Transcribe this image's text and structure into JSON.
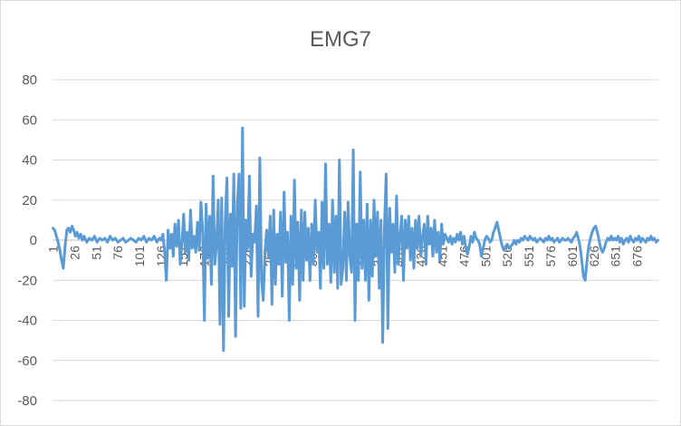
{
  "chart_data": {
    "type": "line",
    "title": "EMG7",
    "xlabel": "",
    "ylabel": "",
    "ylim": [
      -80,
      80
    ],
    "yticks": [
      80,
      60,
      40,
      20,
      0,
      -20,
      -40,
      -60,
      -80
    ],
    "x_count": 700,
    "xtick_labels": [
      "1",
      "26",
      "51",
      "76",
      "101",
      "126",
      "151",
      "176",
      "201",
      "226",
      "251",
      "276",
      "301",
      "326",
      "351",
      "376",
      "401",
      "426",
      "451",
      "476",
      "501",
      "526",
      "551",
      "576",
      "601",
      "626",
      "651",
      "676"
    ],
    "grid": true,
    "legend": "none",
    "series_color": "#5b9bd5",
    "series": [
      {
        "points": [
          [
            1,
            6
          ],
          [
            3,
            5
          ],
          [
            5,
            2
          ],
          [
            7,
            -1
          ],
          [
            9,
            -5
          ],
          [
            11,
            -10
          ],
          [
            13,
            -14
          ],
          [
            15,
            -3
          ],
          [
            17,
            5
          ],
          [
            19,
            6
          ],
          [
            21,
            4
          ],
          [
            23,
            7
          ],
          [
            25,
            5
          ],
          [
            27,
            2
          ],
          [
            29,
            4
          ],
          [
            31,
            1
          ],
          [
            33,
            3
          ],
          [
            35,
            0
          ],
          [
            37,
            2
          ],
          [
            40,
            -1
          ],
          [
            43,
            1
          ],
          [
            46,
            0
          ],
          [
            49,
            2
          ],
          [
            52,
            -1
          ],
          [
            55,
            1
          ],
          [
            58,
            0
          ],
          [
            61,
            1
          ],
          [
            64,
            -1
          ],
          [
            67,
            2
          ],
          [
            70,
            0
          ],
          [
            73,
            1
          ],
          [
            76,
            -1
          ],
          [
            79,
            0
          ],
          [
            82,
            1
          ],
          [
            85,
            -1
          ],
          [
            88,
            0
          ],
          [
            91,
            1
          ],
          [
            94,
            0
          ],
          [
            97,
            -1
          ],
          [
            100,
            1
          ],
          [
            103,
            0
          ],
          [
            106,
            2
          ],
          [
            109,
            -1
          ],
          [
            112,
            1
          ],
          [
            115,
            0
          ],
          [
            118,
            2
          ],
          [
            121,
            -1
          ],
          [
            124,
            1
          ],
          [
            126,
            0
          ],
          [
            128,
            3
          ],
          [
            130,
            -6
          ],
          [
            132,
            -20
          ],
          [
            134,
            5
          ],
          [
            136,
            -4
          ],
          [
            138,
            3
          ],
          [
            140,
            -8
          ],
          [
            142,
            8
          ],
          [
            144,
            -3
          ],
          [
            146,
            10
          ],
          [
            148,
            -12
          ],
          [
            150,
            -2
          ],
          [
            152,
            13
          ],
          [
            154,
            -6
          ],
          [
            156,
            4
          ],
          [
            158,
            -10
          ],
          [
            160,
            15
          ],
          [
            162,
            -4
          ],
          [
            164,
            2
          ],
          [
            166,
            -6
          ],
          [
            168,
            9
          ],
          [
            170,
            -5
          ],
          [
            172,
            19
          ],
          [
            174,
            5
          ],
          [
            176,
            -40
          ],
          [
            178,
            18
          ],
          [
            180,
            -9
          ],
          [
            182,
            12
          ],
          [
            184,
            -22
          ],
          [
            186,
            32
          ],
          [
            188,
            -12
          ],
          [
            190,
            -2
          ],
          [
            192,
            20
          ],
          [
            194,
            -42
          ],
          [
            196,
            21
          ],
          [
            198,
            -55
          ],
          [
            200,
            9
          ],
          [
            202,
            31
          ],
          [
            204,
            -38
          ],
          [
            206,
            13
          ],
          [
            208,
            -13
          ],
          [
            210,
            33
          ],
          [
            212,
            -48
          ],
          [
            214,
            18
          ],
          [
            216,
            33
          ],
          [
            218,
            -34
          ],
          [
            220,
            56
          ],
          [
            222,
            -33
          ],
          [
            224,
            10
          ],
          [
            226,
            -4
          ],
          [
            228,
            32
          ],
          [
            230,
            -18
          ],
          [
            232,
            3
          ],
          [
            234,
            -1
          ],
          [
            236,
            17
          ],
          [
            238,
            -38
          ],
          [
            240,
            41
          ],
          [
            242,
            -20
          ],
          [
            244,
            -30
          ],
          [
            246,
            -6
          ],
          [
            248,
            5
          ],
          [
            250,
            -8
          ],
          [
            252,
            12
          ],
          [
            254,
            -32
          ],
          [
            256,
            15
          ],
          [
            258,
            -22
          ],
          [
            260,
            3
          ],
          [
            262,
            -12
          ],
          [
            264,
            14
          ],
          [
            266,
            -28
          ],
          [
            268,
            24
          ],
          [
            270,
            -11
          ],
          [
            272,
            4
          ],
          [
            274,
            -40
          ],
          [
            276,
            12
          ],
          [
            278,
            -22
          ],
          [
            280,
            30
          ],
          [
            282,
            -14
          ],
          [
            284,
            9
          ],
          [
            286,
            -30
          ],
          [
            288,
            15
          ],
          [
            290,
            -20
          ],
          [
            292,
            14
          ],
          [
            294,
            -10
          ],
          [
            296,
            6
          ],
          [
            298,
            -20
          ],
          [
            300,
            8
          ],
          [
            302,
            -12
          ],
          [
            304,
            20
          ],
          [
            306,
            -6
          ],
          [
            308,
            4
          ],
          [
            310,
            -24
          ],
          [
            312,
            19
          ],
          [
            314,
            -14
          ],
          [
            316,
            38
          ],
          [
            318,
            -12
          ],
          [
            320,
            8
          ],
          [
            322,
            -21
          ],
          [
            324,
            20
          ],
          [
            326,
            -16
          ],
          [
            328,
            12
          ],
          [
            330,
            -24
          ],
          [
            332,
            40
          ],
          [
            334,
            -22
          ],
          [
            336,
            -14
          ],
          [
            338,
            14
          ],
          [
            340,
            -20
          ],
          [
            342,
            19
          ],
          [
            344,
            -8
          ],
          [
            346,
            -16
          ],
          [
            348,
            45
          ],
          [
            350,
            -40
          ],
          [
            352,
            8
          ],
          [
            354,
            -20
          ],
          [
            356,
            34
          ],
          [
            358,
            -14
          ],
          [
            360,
            10
          ],
          [
            362,
            -20
          ],
          [
            364,
            18
          ],
          [
            366,
            -30
          ],
          [
            368,
            10
          ],
          [
            370,
            -18
          ],
          [
            372,
            20
          ],
          [
            374,
            -8
          ],
          [
            376,
            14
          ],
          [
            378,
            -24
          ],
          [
            380,
            10
          ],
          [
            382,
            -51
          ],
          [
            384,
            6
          ],
          [
            386,
            33
          ],
          [
            388,
            -44
          ],
          [
            390,
            16
          ],
          [
            392,
            -6
          ],
          [
            394,
            8
          ],
          [
            396,
            -16
          ],
          [
            398,
            22
          ],
          [
            400,
            -12
          ],
          [
            402,
            2
          ],
          [
            404,
            12
          ],
          [
            406,
            -20
          ],
          [
            408,
            10
          ],
          [
            410,
            -4
          ],
          [
            412,
            12
          ],
          [
            414,
            -10
          ],
          [
            416,
            6
          ],
          [
            418,
            -14
          ],
          [
            420,
            10
          ],
          [
            422,
            -4
          ],
          [
            424,
            12
          ],
          [
            426,
            -8
          ],
          [
            428,
            2
          ],
          [
            430,
            8
          ],
          [
            432,
            -12
          ],
          [
            434,
            12
          ],
          [
            436,
            -2
          ],
          [
            438,
            6
          ],
          [
            440,
            -8
          ],
          [
            442,
            10
          ],
          [
            444,
            -6
          ],
          [
            446,
            4
          ],
          [
            448,
            -10
          ],
          [
            450,
            8
          ],
          [
            452,
            -2
          ],
          [
            454,
            3
          ],
          [
            456,
            1
          ],
          [
            458,
            -1
          ],
          [
            460,
            2
          ],
          [
            462,
            -2
          ],
          [
            464,
            1
          ],
          [
            466,
            -1
          ],
          [
            468,
            3
          ],
          [
            470,
            0
          ],
          [
            472,
            4
          ],
          [
            474,
            -2
          ],
          [
            476,
            2
          ],
          [
            478,
            -4
          ],
          [
            480,
            -7
          ],
          [
            482,
            -3
          ],
          [
            484,
            2
          ],
          [
            486,
            -1
          ],
          [
            488,
            4
          ],
          [
            490,
            1
          ],
          [
            492,
            0
          ],
          [
            494,
            -2
          ],
          [
            496,
            -8
          ],
          [
            498,
            -4
          ],
          [
            500,
            0
          ],
          [
            502,
            2
          ],
          [
            504,
            1
          ],
          [
            506,
            -1
          ],
          [
            508,
            0
          ],
          [
            510,
            4
          ],
          [
            512,
            6
          ],
          [
            514,
            9
          ],
          [
            516,
            5
          ],
          [
            518,
            1
          ],
          [
            520,
            -3
          ],
          [
            522,
            -5
          ],
          [
            524,
            -3
          ],
          [
            526,
            -2
          ],
          [
            528,
            -4
          ],
          [
            530,
            -3
          ],
          [
            532,
            -2
          ],
          [
            534,
            0
          ],
          [
            536,
            -2
          ],
          [
            538,
            0
          ],
          [
            540,
            -1
          ],
          [
            542,
            1
          ],
          [
            544,
            0
          ],
          [
            546,
            2
          ],
          [
            548,
            1
          ],
          [
            550,
            0
          ],
          [
            552,
            2
          ],
          [
            554,
            1
          ],
          [
            556,
            0
          ],
          [
            558,
            1
          ],
          [
            560,
            -1
          ],
          [
            562,
            0
          ],
          [
            564,
            1
          ],
          [
            566,
            0
          ],
          [
            568,
            -1
          ],
          [
            570,
            1
          ],
          [
            572,
            0
          ],
          [
            574,
            2
          ],
          [
            576,
            0
          ],
          [
            578,
            1
          ],
          [
            580,
            -1
          ],
          [
            582,
            0
          ],
          [
            584,
            1
          ],
          [
            586,
            -1
          ],
          [
            588,
            0
          ],
          [
            590,
            1
          ],
          [
            592,
            0
          ],
          [
            594,
            0
          ],
          [
            596,
            1
          ],
          [
            598,
            0
          ],
          [
            600,
            -1
          ],
          [
            602,
            1
          ],
          [
            604,
            2
          ],
          [
            606,
            4
          ],
          [
            608,
            1
          ],
          [
            610,
            -3
          ],
          [
            612,
            -10
          ],
          [
            614,
            -18
          ],
          [
            616,
            -20
          ],
          [
            618,
            -10
          ],
          [
            620,
            -3
          ],
          [
            622,
            1
          ],
          [
            624,
            4
          ],
          [
            626,
            6
          ],
          [
            628,
            7
          ],
          [
            630,
            4
          ],
          [
            632,
            0
          ],
          [
            634,
            -4
          ],
          [
            636,
            -6
          ],
          [
            638,
            -4
          ],
          [
            640,
            -1
          ],
          [
            642,
            1
          ],
          [
            644,
            0
          ],
          [
            646,
            2
          ],
          [
            648,
            0
          ],
          [
            650,
            1
          ],
          [
            652,
            0
          ],
          [
            654,
            2
          ],
          [
            656,
            -1
          ],
          [
            658,
            1
          ],
          [
            660,
            -2
          ],
          [
            662,
            0
          ],
          [
            664,
            1
          ],
          [
            666,
            -1
          ],
          [
            668,
            2
          ],
          [
            670,
            0
          ],
          [
            672,
            -1
          ],
          [
            674,
            1
          ],
          [
            676,
            0
          ],
          [
            678,
            2
          ],
          [
            680,
            -1
          ],
          [
            682,
            1
          ],
          [
            684,
            0
          ],
          [
            686,
            -1
          ],
          [
            688,
            1
          ],
          [
            690,
            0
          ],
          [
            692,
            2
          ],
          [
            694,
            0
          ],
          [
            696,
            1
          ],
          [
            698,
            -1
          ],
          [
            700,
            0
          ]
        ]
      }
    ]
  }
}
